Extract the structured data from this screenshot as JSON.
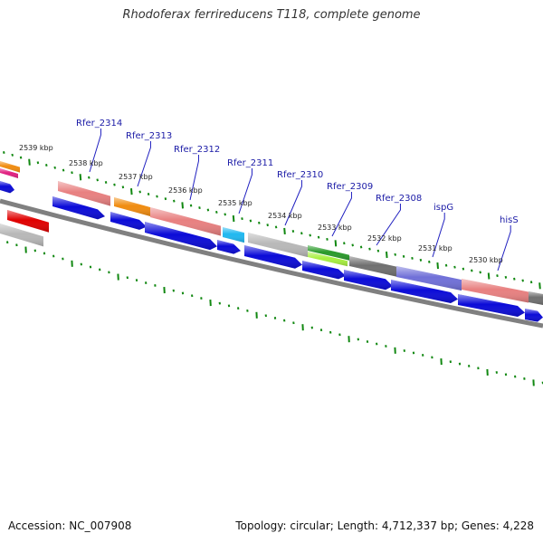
{
  "header": {
    "title": "Rhodoferax ferrireducens T118, complete genome"
  },
  "footer": {
    "accession": "Accession: NC_007908",
    "summary": "Topology: circular; Length: 4,712,337 bp; Genes: 4,228"
  },
  "colors": {
    "backbone": "#808080",
    "cds_forward": "#0b0bd8",
    "tick": "#118811",
    "label_line": "#2020c0",
    "feature_pink": "#e88080",
    "feature_orange": "#f08c10",
    "feature_cyan": "#20b8f0",
    "feature_grey": "#b8b8b8",
    "feature_green": "#2a9a2a",
    "feature_lime": "#a8f040",
    "feature_dark": "#707070",
    "feature_purple": "#7070d8",
    "feature_red": "#e00000",
    "feature_magenta": "#e02080"
  },
  "ruler": {
    "ticks": [
      {
        "label": "2539 kbp"
      },
      {
        "label": "2538 kbp"
      },
      {
        "label": "2537 kbp"
      },
      {
        "label": "2536 kbp"
      },
      {
        "label": "2535 kbp"
      },
      {
        "label": "2534 kbp"
      },
      {
        "label": "2533 kbp"
      },
      {
        "label": "2532 kbp"
      },
      {
        "label": "2531 kbp"
      },
      {
        "label": "2530 kbp"
      }
    ]
  },
  "genes": [
    {
      "label": "Rfer_2314"
    },
    {
      "label": "Rfer_2313"
    },
    {
      "label": "Rfer_2312"
    },
    {
      "label": "Rfer_2311"
    },
    {
      "label": "Rfer_2310"
    },
    {
      "label": "Rfer_2309"
    },
    {
      "label": "Rfer_2308"
    },
    {
      "label": "ispG"
    },
    {
      "label": "hisS"
    }
  ],
  "features": [
    {
      "name": "feature-orange-edge",
      "color": "#f08c10"
    },
    {
      "name": "feature-magenta-edge",
      "color": "#e02080"
    },
    {
      "name": "feature-pink-1",
      "color": "#e88080"
    },
    {
      "name": "feature-orange",
      "color": "#f08c10"
    },
    {
      "name": "feature-pink-2",
      "color": "#e88080"
    },
    {
      "name": "feature-cyan",
      "color": "#20b8f0"
    },
    {
      "name": "feature-grey",
      "color": "#b8b8b8"
    },
    {
      "name": "feature-green",
      "color": "#2a9a2a"
    },
    {
      "name": "feature-lime",
      "color": "#a8f040"
    },
    {
      "name": "feature-dark",
      "color": "#707070"
    },
    {
      "name": "feature-purple",
      "color": "#7070d8"
    },
    {
      "name": "feature-pink-3",
      "color": "#e88080"
    },
    {
      "name": "feature-dark-edge",
      "color": "#707070"
    },
    {
      "name": "feature-red",
      "color": "#e00000"
    },
    {
      "name": "feature-grey-inner",
      "color": "#b8b8b8"
    }
  ]
}
